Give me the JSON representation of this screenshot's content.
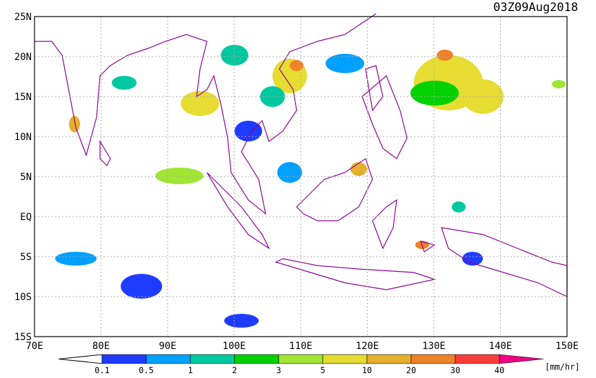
{
  "title": "03Z09Aug2018",
  "map": {
    "lat_labels": [
      "25N",
      "20N",
      "15N",
      "10N",
      "5N",
      "EQ",
      "5S",
      "10S",
      "15S"
    ],
    "lon_labels": [
      "70E",
      "80E",
      "90E",
      "100E",
      "110E",
      "120E",
      "130E",
      "140E",
      "150E"
    ]
  },
  "colorbar": {
    "labels": [
      "0.1",
      "0.5",
      "1",
      "2",
      "3",
      "5",
      "10",
      "20",
      "30",
      "40"
    ],
    "under_color": "#ffffff",
    "colors": [
      "#1e3cff",
      "#00a0ff",
      "#00c8a0",
      "#00d200",
      "#a0e632",
      "#e6dc32",
      "#e6af2d",
      "#f08228",
      "#fa3c3c",
      "#f00082"
    ],
    "unit": "[mm/hr]"
  }
}
